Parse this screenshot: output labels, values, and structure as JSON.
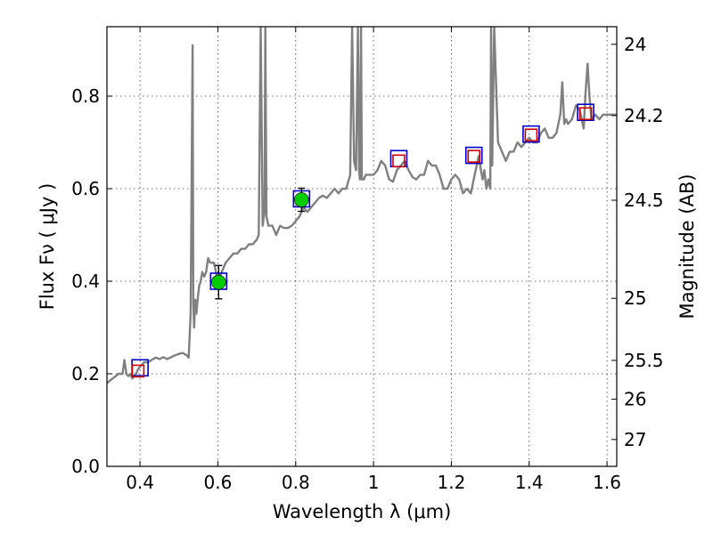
{
  "chart_data": {
    "type": "line",
    "xlabel": "Wavelength  λ (μm)",
    "ylabel": "Flux  Fν  ( μJy )",
    "ylabel_right": "Magnitude (AB)",
    "xlim": [
      0.315,
      1.625
    ],
    "ylim": [
      0.0,
      0.95
    ],
    "grid": true,
    "x_ticks": [
      0.4,
      0.6,
      0.8,
      1.0,
      1.2,
      1.4,
      1.6
    ],
    "x_tick_labels": [
      "0.4",
      "0.6",
      "0.8",
      "1",
      "1.2",
      "1.4",
      "1.6"
    ],
    "y_ticks": [
      0.0,
      0.2,
      0.4,
      0.6,
      0.8
    ],
    "y_tick_labels": [
      "0.0",
      "0.2",
      "0.4",
      "0.6",
      "0.8"
    ],
    "right_axis_ticks": [
      {
        "label": "24",
        "flux": 0.912
      },
      {
        "label": "24.2",
        "flux": 0.758
      },
      {
        "label": "24.5",
        "flux": 0.575
      },
      {
        "label": "25",
        "flux": 0.363
      },
      {
        "label": "25.5",
        "flux": 0.229
      },
      {
        "label": "26",
        "flux": 0.145
      },
      {
        "label": "27",
        "flux": 0.058
      }
    ],
    "series": [
      {
        "style": "line",
        "color": "#808080",
        "x": [
          0.315,
          0.33,
          0.345,
          0.355,
          0.36,
          0.365,
          0.37,
          0.375,
          0.38,
          0.385,
          0.39,
          0.395,
          0.4,
          0.405,
          0.41,
          0.42,
          0.43,
          0.44,
          0.45,
          0.46,
          0.47,
          0.48,
          0.49,
          0.5,
          0.51,
          0.52,
          0.525,
          0.53,
          0.535,
          0.537,
          0.539,
          0.542,
          0.545,
          0.548,
          0.552,
          0.556,
          0.56,
          0.565,
          0.57,
          0.575,
          0.58,
          0.59,
          0.6,
          0.61,
          0.62,
          0.63,
          0.64,
          0.65,
          0.66,
          0.67,
          0.68,
          0.69,
          0.7,
          0.705,
          0.71,
          0.715,
          0.72,
          0.722,
          0.725,
          0.73,
          0.74,
          0.75,
          0.76,
          0.77,
          0.78,
          0.79,
          0.8,
          0.81,
          0.82,
          0.83,
          0.84,
          0.85,
          0.86,
          0.87,
          0.88,
          0.89,
          0.9,
          0.91,
          0.92,
          0.93,
          0.94,
          0.945,
          0.95,
          0.955,
          0.96,
          0.963,
          0.965,
          0.968,
          0.97,
          0.975,
          0.98,
          0.99,
          1.0,
          1.01,
          1.02,
          1.03,
          1.04,
          1.05,
          1.06,
          1.07,
          1.08,
          1.09,
          1.1,
          1.11,
          1.12,
          1.13,
          1.14,
          1.15,
          1.16,
          1.17,
          1.18,
          1.19,
          1.2,
          1.21,
          1.22,
          1.23,
          1.24,
          1.25,
          1.26,
          1.27,
          1.28,
          1.285,
          1.29,
          1.295,
          1.3,
          1.302,
          1.305,
          1.31,
          1.32,
          1.33,
          1.34,
          1.35,
          1.36,
          1.37,
          1.38,
          1.39,
          1.4,
          1.41,
          1.42,
          1.43,
          1.44,
          1.45,
          1.46,
          1.47,
          1.48,
          1.485,
          1.49,
          1.495,
          1.5,
          1.51,
          1.52,
          1.53,
          1.54,
          1.545,
          1.55,
          1.555,
          1.56,
          1.57,
          1.58,
          1.59,
          1.6,
          1.61,
          1.625
        ],
        "y": [
          0.18,
          0.19,
          0.2,
          0.2,
          0.23,
          0.2,
          0.195,
          0.2,
          0.19,
          0.195,
          0.2,
          0.21,
          0.215,
          0.22,
          0.225,
          0.225,
          0.23,
          0.235,
          0.232,
          0.236,
          0.232,
          0.236,
          0.24,
          0.243,
          0.245,
          0.24,
          0.235,
          0.33,
          0.91,
          0.35,
          0.3,
          0.36,
          0.33,
          0.36,
          0.39,
          0.4,
          0.42,
          0.41,
          0.42,
          0.45,
          0.44,
          0.44,
          0.4,
          0.42,
          0.44,
          0.45,
          0.46,
          0.46,
          0.47,
          0.47,
          0.48,
          0.48,
          0.49,
          0.5,
          0.95,
          0.52,
          0.55,
          0.95,
          0.54,
          0.52,
          0.52,
          0.5,
          0.52,
          0.515,
          0.515,
          0.52,
          0.53,
          0.54,
          0.56,
          0.55,
          0.56,
          0.57,
          0.58,
          0.585,
          0.58,
          0.59,
          0.6,
          0.59,
          0.6,
          0.6,
          0.63,
          0.95,
          0.66,
          0.64,
          0.95,
          0.64,
          0.62,
          0.95,
          0.62,
          0.62,
          0.63,
          0.63,
          0.63,
          0.64,
          0.66,
          0.65,
          0.62,
          0.615,
          0.64,
          0.65,
          0.66,
          0.64,
          0.625,
          0.62,
          0.63,
          0.63,
          0.66,
          0.65,
          0.65,
          0.63,
          0.6,
          0.6,
          0.62,
          0.63,
          0.62,
          0.59,
          0.6,
          0.59,
          0.63,
          0.67,
          0.62,
          0.64,
          0.6,
          0.62,
          0.6,
          0.95,
          0.65,
          0.95,
          0.7,
          0.68,
          0.66,
          0.68,
          0.68,
          0.7,
          0.69,
          0.7,
          0.71,
          0.7,
          0.7,
          0.72,
          0.73,
          0.71,
          0.71,
          0.72,
          0.76,
          0.83,
          0.74,
          0.75,
          0.74,
          0.75,
          0.78,
          0.77,
          0.73,
          0.81,
          0.87,
          0.8,
          0.75,
          0.76,
          0.75,
          0.76,
          0.76,
          0.76,
          0.76
        ]
      },
      {
        "name": "",
        "style": "square",
        "edge_color": "#0000cc",
        "x": [
          0.4,
          0.602,
          0.815,
          1.065,
          1.258,
          1.405,
          1.545
        ],
        "y": [
          0.213,
          0.4,
          0.578,
          0.665,
          0.672,
          0.718,
          0.765
        ]
      },
      {
        "style": "square",
        "edge_color": "#cc0000",
        "x": [
          0.395,
          1.065,
          1.258,
          1.405,
          1.545
        ],
        "y": [
          0.206,
          0.66,
          0.67,
          0.716,
          0.762
        ]
      },
      {
        "style": "circle",
        "fill_color": "#00cc00",
        "x": [
          0.602,
          0.815
        ],
        "y": [
          0.398,
          0.576
        ],
        "err": [
          0.036,
          0.025
        ]
      }
    ]
  }
}
